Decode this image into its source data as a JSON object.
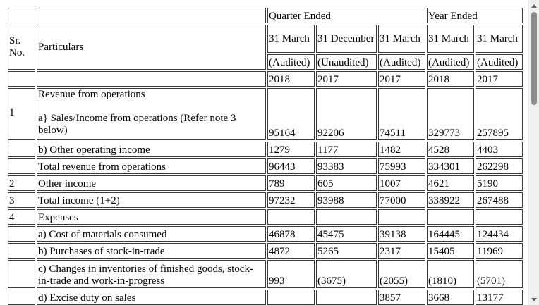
{
  "header": {
    "group_quarter": "Quarter Ended",
    "group_year": "Year Ended",
    "sr_line1": "Sr.",
    "sr_line2": "No.",
    "particulars": "Particulars",
    "dates": [
      "31 March",
      "31 December",
      "31 March",
      "31 March",
      "31 March"
    ],
    "status": [
      "(Audited)",
      "(Unaudited)",
      "(Audited)",
      "(Audited)",
      "(Audited)"
    ],
    "years": [
      "2018",
      "2017",
      "2017",
      "2018",
      "2017"
    ]
  },
  "section1": {
    "sr": "1",
    "title": "Revenue from operations",
    "item": "a} Sales/Income from operations (Refer note 3 below)",
    "values": [
      "95164",
      "92206",
      "74511",
      "329773",
      "257895"
    ]
  },
  "rows": [
    {
      "sr": "",
      "label": "b) Other operating income",
      "values": [
        "1279",
        "1177",
        "1482",
        "4528",
        "4403"
      ]
    },
    {
      "sr": "",
      "label": "Total revenue from operations",
      "values": [
        "96443",
        "93383",
        "75993",
        "334301",
        "262298"
      ]
    },
    {
      "sr": "2",
      "label": "Other income",
      "values": [
        "789",
        "605",
        "1007",
        "4621",
        "5190"
      ]
    },
    {
      "sr": "3",
      "label": "Total income (1+2)",
      "values": [
        "97232",
        "93988",
        "77000",
        "338922",
        "267488"
      ]
    },
    {
      "sr": "4",
      "label": "Expenses",
      "values": [
        "",
        "",
        "",
        "",
        ""
      ]
    },
    {
      "sr": "",
      "label": "a) Cost of materials consumed",
      "values": [
        "46878",
        "45475",
        "39138",
        "164445",
        "124434"
      ]
    },
    {
      "sr": "",
      "label": "b) Purchases of stock-in-trade",
      "values": [
        "4872",
        "5265",
        "2317",
        "15405",
        "11969"
      ]
    },
    {
      "sr": "",
      "label": "c) Changes in inventories of finished goods, stock-in-trade and work-in-progress",
      "values": [
        "993",
        "(3675)",
        "(2055)",
        "(1810)",
        "(5701)"
      ]
    },
    {
      "sr": "",
      "label": "d) Excise duty on sales",
      "values": [
        "",
        "",
        "3857",
        "3668",
        "13177"
      ]
    }
  ]
}
